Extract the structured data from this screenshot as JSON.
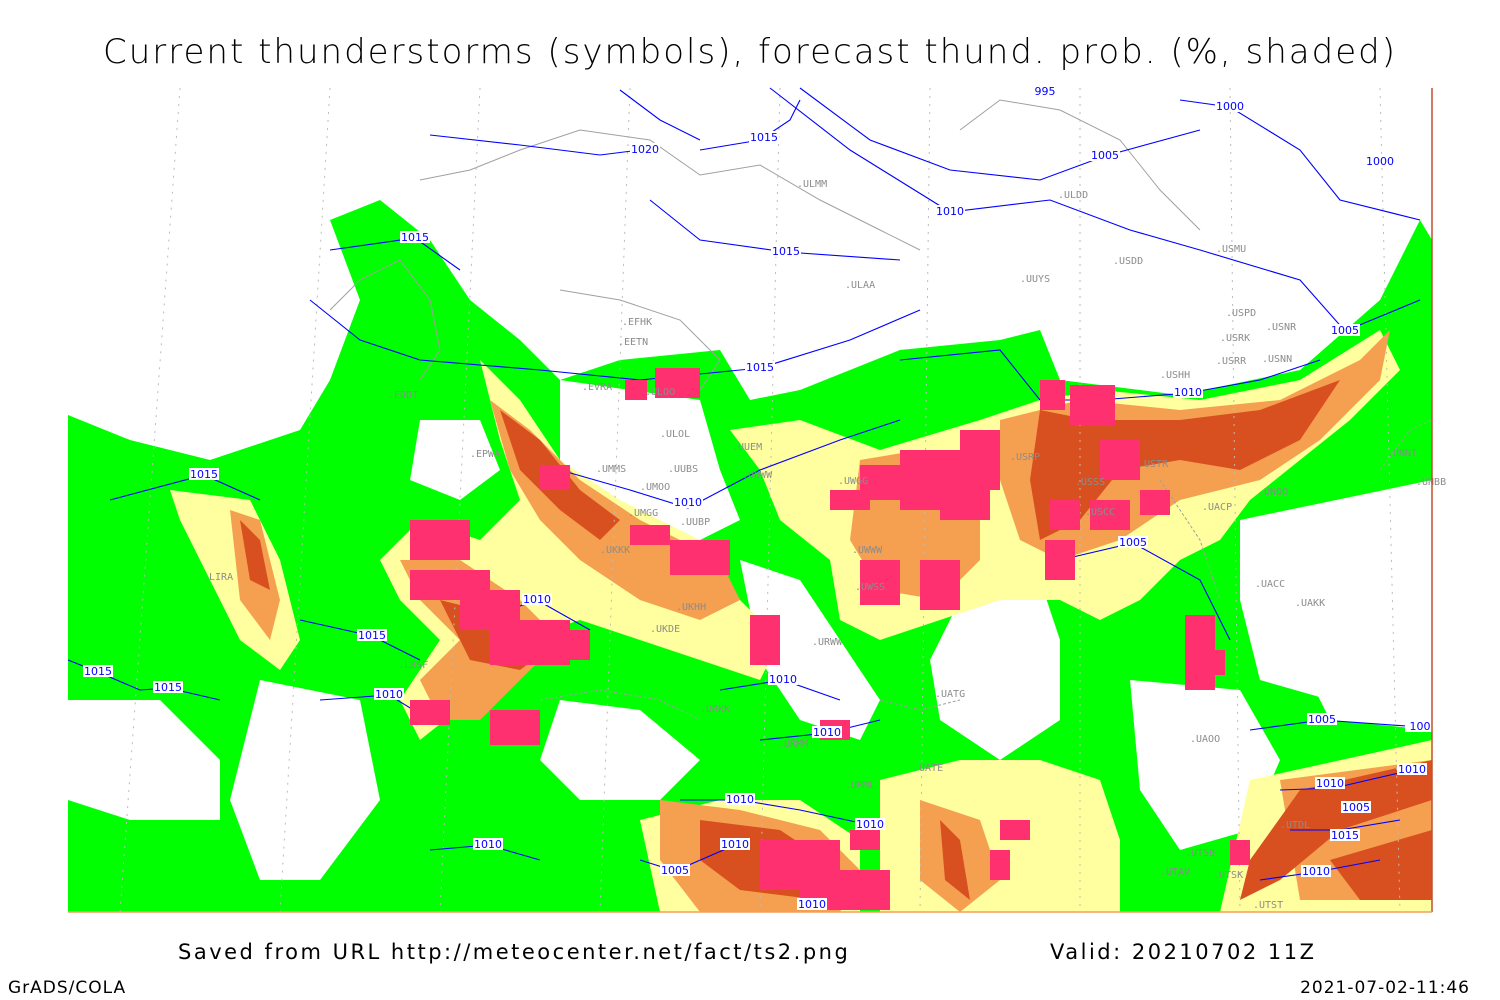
{
  "title": "Current thunderstorms (symbols), forecast thund. prob. (%, shaded)",
  "footer": {
    "saved_from": "Saved from URL http://meteocenter.net/fact/ts2.png",
    "valid": "Valid: 20210702 11Z",
    "software": "GrADS/COLA",
    "generated": "2021-07-02-11:46"
  },
  "colors": {
    "prob_low": "#00ff00",
    "prob_mid": "#ffffa0",
    "prob_high": "#f5a050",
    "prob_very_high": "#d85020",
    "thunderstorm_symbol": "#ff3070",
    "isobar": "#0000ff",
    "coastline": "#a0a0a0"
  },
  "isobar_labels": [
    "1020",
    "1015",
    "995",
    "1000",
    "1005",
    "1000",
    "1010",
    "1015",
    "1015",
    "1015",
    "1010",
    "1005",
    "1010",
    "1015",
    "1010",
    "1015",
    "1015",
    "1015",
    "1010",
    "1010",
    "1005",
    "1010",
    "1005",
    "1010",
    "1010",
    "1010",
    "1010",
    "1005",
    "1010",
    "1010",
    "1005",
    "1015",
    "1010",
    "1010",
    "100"
  ],
  "stations": [
    "EFHK",
    "EETN",
    "EVRA",
    "ULOO",
    "ULOL",
    "UMMS",
    "UMOO",
    "UUBS",
    "UUEM",
    "UUWW",
    "UUBP",
    "UMGG",
    "EDDT",
    "EPWA",
    "LIRA",
    "UKKK",
    "UKHH",
    "UKDE",
    "URWW",
    "UWGG",
    "UWWW",
    "UWSS",
    "USSS",
    "USCC",
    "USTR",
    "USRR",
    "USNN",
    "USRK",
    "USNR",
    "USPD",
    "USHH",
    "USMU",
    "USDD",
    "UUYS",
    "ULAA",
    "UNOO",
    "UNNT",
    "UNBB",
    "UACC",
    "UAKK",
    "UAOO",
    "UATG",
    "UATE",
    "URML",
    "UTSB",
    "UTAV",
    "UTSK",
    "UTST",
    "UTDL",
    "ULMM",
    "ULDD",
    "URKK",
    "URMM",
    "LBSF",
    "UACP",
    "USRP"
  ]
}
